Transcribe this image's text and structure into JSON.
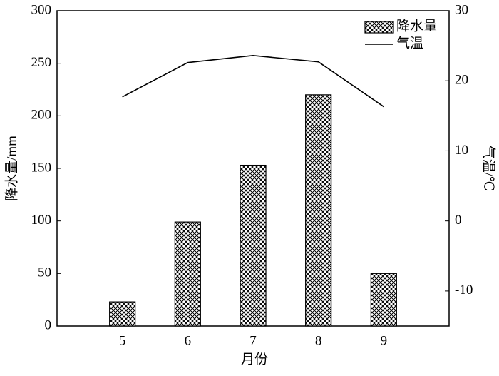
{
  "chart_data": {
    "type": "bar-line",
    "xlabel": "月份",
    "ylabel": "降水量/mm",
    "y2label": "气温/℃",
    "x": [
      5,
      6,
      7,
      8,
      9
    ],
    "xlim": [
      4,
      10
    ],
    "xticks": [
      5,
      6,
      7,
      8,
      9
    ],
    "ylim": [
      0,
      300
    ],
    "yticks": [
      0,
      50,
      100,
      150,
      200,
      250,
      300
    ],
    "y2lim": [
      -15,
      30
    ],
    "y2ticks": [
      -10,
      0,
      10,
      20,
      30
    ],
    "legend": "upper right",
    "grid": false,
    "series": [
      {
        "name": "降水量",
        "type": "bar",
        "color": "#000000",
        "values": [
          23,
          99,
          153,
          220,
          50
        ]
      },
      {
        "name": "气温",
        "type": "line",
        "axis": "y2",
        "color": "#000000",
        "values": [
          17.7,
          22.6,
          23.6,
          22.7,
          16.3
        ]
      }
    ]
  }
}
